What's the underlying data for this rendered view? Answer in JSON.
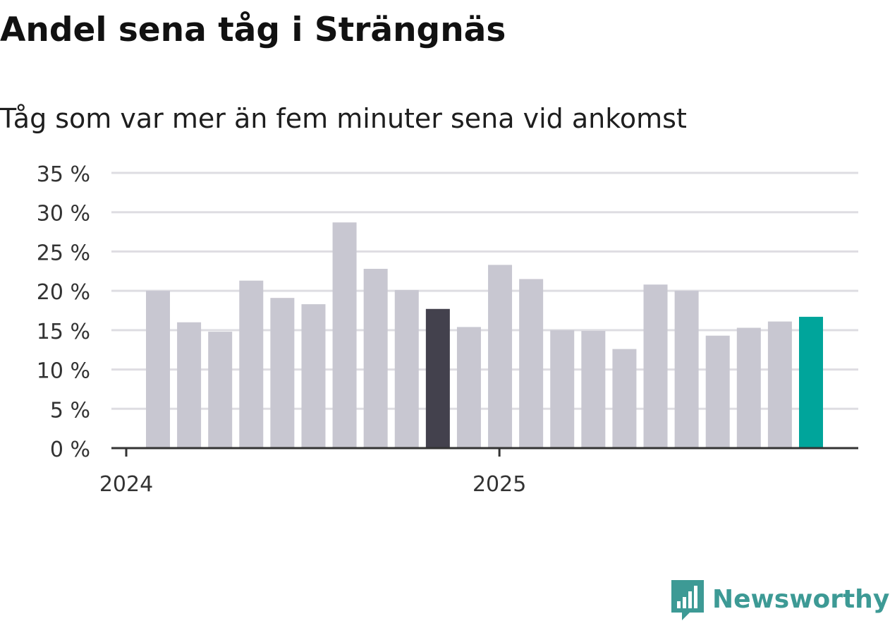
{
  "header": {
    "title": "Andel sena tåg i Strängnäs",
    "subtitle": "Tåg som var mer än fem minuter sena vid ankomst"
  },
  "chart_data": {
    "type": "bar",
    "title": "Andel sena tåg i Strängnäs",
    "subtitle": "Tåg som var mer än fem minuter sena vid ankomst",
    "xlabel": "",
    "ylabel": "",
    "ylim": [
      0,
      35
    ],
    "yticks": [
      0,
      5,
      10,
      15,
      20,
      25,
      30,
      35
    ],
    "ytick_labels": [
      "0 %",
      "5 %",
      "10 %",
      "15 %",
      "20 %",
      "25 %",
      "30 %",
      "35 %"
    ],
    "xtick_labels": [
      "2024",
      "2025"
    ],
    "grid": true,
    "categories": [
      "2024-01",
      "2024-02",
      "2024-03",
      "2024-04",
      "2024-05",
      "2024-06",
      "2024-07",
      "2024-08",
      "2024-09",
      "2024-10",
      "2024-11",
      "2024-12",
      "2025-01",
      "2025-02",
      "2025-03",
      "2025-04",
      "2025-05",
      "2025-06",
      "2025-07",
      "2025-08",
      "2025-09",
      "2025-10"
    ],
    "values": [
      20.0,
      16.0,
      14.8,
      21.3,
      19.1,
      18.3,
      28.7,
      22.8,
      20.1,
      17.7,
      15.4,
      23.3,
      21.5,
      15.0,
      14.9,
      12.6,
      20.8,
      20.0,
      14.3,
      15.3,
      16.1,
      16.7
    ],
    "colors": {
      "default": "#c8c7d1",
      "highlight_previous_year": "#43414d",
      "highlight_current": "#00a59b",
      "grid": "#dedde2",
      "axis": "#333333"
    },
    "highlighted": {
      "2024-10": "highlight_previous_year",
      "2025-10": "highlight_current"
    }
  },
  "logo": {
    "text": "Newsworthy",
    "icon": "newsworthy-chart-bubble-icon",
    "color": "#3d9a95"
  }
}
